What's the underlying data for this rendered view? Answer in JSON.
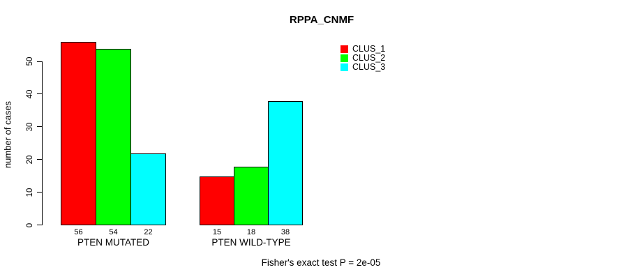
{
  "title": "RPPA_CNMF",
  "ylabel": "number of cases",
  "footer": "Fisher's exact test P = 2e-05",
  "legend": {
    "items": [
      {
        "label": "CLUS_1",
        "color": "#ff0000"
      },
      {
        "label": "CLUS_2",
        "color": "#00ff00"
      },
      {
        "label": "CLUS_3",
        "color": "#00ffff"
      }
    ]
  },
  "chart_data": {
    "type": "bar",
    "title": "RPPA_CNMF",
    "xlabel": "",
    "ylabel": "number of cases",
    "categories": [
      "PTEN MUTATED",
      "PTEN WILD-TYPE"
    ],
    "series": [
      {
        "name": "CLUS_1",
        "color": "#ff0000",
        "values": [
          56,
          15
        ]
      },
      {
        "name": "CLUS_2",
        "color": "#00ff00",
        "values": [
          54,
          18
        ]
      },
      {
        "name": "CLUS_3",
        "color": "#00ffff",
        "values": [
          22,
          38
        ]
      }
    ],
    "yticks": [
      0,
      10,
      20,
      30,
      40,
      50
    ],
    "ylim": [
      0,
      56
    ],
    "bar_value_labels": [
      [
        56,
        54,
        22
      ],
      [
        15,
        18,
        38
      ]
    ],
    "annotation": "Fisher's exact test P = 2e-05",
    "legend_position": "top-right",
    "grid": false,
    "background": "#ffffff",
    "bar_border_color": "#000000"
  }
}
